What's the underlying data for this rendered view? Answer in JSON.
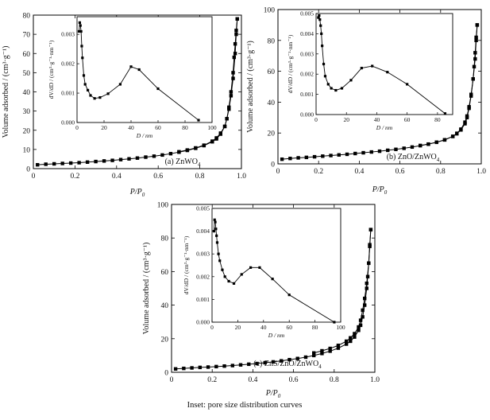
{
  "caption": "Inset: pore size distribution curves",
  "chart_data": [
    {
      "type": "line",
      "panel_label": "(a) ZnWO",
      "panel_label_sub": "4",
      "xlabel": "P/P",
      "xlabel_sub": "0",
      "ylabel": "Volume adsorbed / (cm³·g⁻¹)",
      "xlim": [
        0,
        1.0
      ],
      "ylim": [
        0,
        80
      ],
      "xticks": [
        "0",
        "0.2",
        "0.4",
        "0.6",
        "0.8",
        "1.0"
      ],
      "yticks": [
        "0",
        "10",
        "20",
        "30",
        "40",
        "50",
        "60",
        "70",
        "80"
      ],
      "series": [
        {
          "x": [
            0.02,
            0.06,
            0.1,
            0.14,
            0.18,
            0.22,
            0.26,
            0.3,
            0.34,
            0.38,
            0.42,
            0.46,
            0.5,
            0.54,
            0.58,
            0.62,
            0.66,
            0.7,
            0.74,
            0.78,
            0.82,
            0.86,
            0.88,
            0.9,
            0.92,
            0.93,
            0.94,
            0.95,
            0.96,
            0.965,
            0.97,
            0.975,
            0.98
          ],
          "y": [
            2.0,
            2.3,
            2.5,
            2.7,
            2.9,
            3.1,
            3.4,
            3.7,
            4.0,
            4.3,
            4.7,
            5.1,
            5.5,
            6.0,
            6.5,
            7.1,
            7.8,
            8.6,
            9.5,
            10.6,
            12.0,
            14.0,
            15.5,
            18,
            22,
            26,
            32,
            40,
            50,
            58,
            65,
            72,
            78
          ]
        },
        {
          "x": [
            0.98,
            0.975,
            0.97,
            0.96,
            0.95,
            0.94,
            0.93,
            0.92,
            0.9,
            0.88,
            0.86,
            0.82,
            0.78,
            0.74,
            0.7
          ],
          "y": [
            78,
            70,
            60,
            47,
            38,
            31,
            26,
            22,
            18.5,
            16,
            14.3,
            12.2,
            10.8,
            9.7,
            8.8
          ]
        }
      ],
      "inset": {
        "xlabel": "D / nm",
        "ylabel": "dV/dD / (cm³·g⁻¹·nm⁻¹)",
        "xlim": [
          0,
          100
        ],
        "ylim": [
          0,
          0.0036
        ],
        "xticks": [
          "0",
          "20",
          "40",
          "60",
          "80",
          "100"
        ],
        "yticks": [
          "0.000",
          "0.001",
          "0.002",
          "0.003"
        ],
        "x": [
          1.5,
          2,
          2.5,
          3,
          3.5,
          4,
          5,
          6,
          8,
          10,
          13,
          17,
          23,
          32,
          40,
          46,
          60,
          90
        ],
        "y": [
          0.0031,
          0.0034,
          0.0033,
          0.0031,
          0.0026,
          0.0022,
          0.0016,
          0.0013,
          0.0011,
          0.00092,
          0.00082,
          0.00085,
          0.00098,
          0.0013,
          0.0019,
          0.0018,
          0.00115,
          8e-05
        ]
      }
    },
    {
      "type": "line",
      "panel_label": "(b) ZnO/ZnWO",
      "panel_label_sub": "4",
      "xlabel": "P/P",
      "xlabel_sub": "0",
      "ylabel": "Volume adsorbed / (cm³·g⁻¹)",
      "xlim": [
        0,
        1.0
      ],
      "ylim": [
        0,
        100
      ],
      "xticks": [
        "0",
        "0.2",
        "0.4",
        "0.6",
        "0.8",
        "1.0"
      ],
      "yticks": [
        "0",
        "20",
        "40",
        "60",
        "80",
        "100"
      ],
      "series": [
        {
          "x": [
            0.02,
            0.06,
            0.1,
            0.14,
            0.18,
            0.22,
            0.26,
            0.3,
            0.34,
            0.38,
            0.42,
            0.46,
            0.5,
            0.54,
            0.58,
            0.62,
            0.66,
            0.7,
            0.74,
            0.78,
            0.82,
            0.86,
            0.88,
            0.9,
            0.92,
            0.93,
            0.94,
            0.95,
            0.96,
            0.965,
            0.97,
            0.975,
            0.98
          ],
          "y": [
            3.0,
            3.5,
            3.9,
            4.2,
            4.6,
            5.0,
            5.4,
            5.8,
            6.2,
            6.7,
            7.2,
            7.7,
            8.2,
            8.8,
            9.4,
            10.1,
            10.9,
            11.8,
            12.8,
            14.0,
            15.6,
            17.8,
            19.5,
            22,
            26,
            30,
            36,
            44,
            55,
            63,
            72,
            82,
            90
          ]
        },
        {
          "x": [
            0.98,
            0.975,
            0.97,
            0.96,
            0.95,
            0.94,
            0.93,
            0.92,
            0.9,
            0.88,
            0.86,
            0.82,
            0.78,
            0.74,
            0.7
          ],
          "y": [
            90,
            80,
            68,
            55,
            45,
            37,
            31,
            27,
            22.5,
            19.8,
            17.8,
            15.5,
            14.0,
            12.8,
            11.9
          ]
        }
      ],
      "inset": {
        "xlabel": "D / nm",
        "ylabel": "dV/dD / (cm³·g⁻¹·nm⁻¹)",
        "xlim": [
          0,
          90
        ],
        "ylim": [
          0,
          0.005
        ],
        "xticks": [
          "0",
          "20",
          "40",
          "60",
          "80"
        ],
        "yticks": [
          "0.000",
          "0.001",
          "0.002",
          "0.003",
          "0.004",
          "0.005"
        ],
        "x": [
          1.5,
          2,
          2.5,
          3,
          3.5,
          4,
          5,
          6,
          8,
          10,
          13,
          17,
          23,
          30,
          37,
          47,
          60,
          85
        ],
        "y": [
          0.0048,
          0.0049,
          0.0047,
          0.0044,
          0.004,
          0.0034,
          0.0025,
          0.0019,
          0.0015,
          0.0013,
          0.0012,
          0.0013,
          0.0017,
          0.0023,
          0.0024,
          0.0021,
          0.0015,
          5e-05
        ]
      }
    },
    {
      "type": "line",
      "panel_label": "(c) ZnS/ZnO/ZnWO",
      "panel_label_sub": "4",
      "xlabel": "P/P",
      "xlabel_sub": "0",
      "ylabel": "Volume adsorbed / (cm³·g⁻¹)",
      "xlim": [
        0,
        1.0
      ],
      "ylim": [
        0,
        100
      ],
      "xticks": [
        "0",
        "0.2",
        "0.4",
        "0.6",
        "0.8",
        "1.0"
      ],
      "yticks": [
        "0",
        "20",
        "40",
        "60",
        "80",
        "100"
      ],
      "series": [
        {
          "x": [
            0.02,
            0.06,
            0.1,
            0.14,
            0.18,
            0.22,
            0.26,
            0.3,
            0.34,
            0.38,
            0.42,
            0.46,
            0.5,
            0.54,
            0.58,
            0.62,
            0.66,
            0.7,
            0.74,
            0.78,
            0.82,
            0.86,
            0.88,
            0.9,
            0.92,
            0.93,
            0.94,
            0.95,
            0.96,
            0.965,
            0.97,
            0.975,
            0.98
          ],
          "y": [
            2.0,
            2.3,
            2.6,
            2.9,
            3.1,
            3.4,
            3.7,
            4.0,
            4.4,
            4.8,
            5.2,
            5.7,
            6.2,
            6.8,
            7.5,
            8.2,
            9.0,
            10.0,
            11.2,
            12.6,
            14.4,
            16.8,
            18.5,
            21,
            25,
            28,
            33,
            40,
            50,
            57,
            65,
            75,
            85
          ]
        },
        {
          "x": [
            0.98,
            0.975,
            0.97,
            0.96,
            0.95,
            0.94,
            0.93,
            0.92,
            0.9,
            0.88,
            0.86,
            0.82,
            0.78,
            0.74,
            0.7
          ],
          "y": [
            85,
            76,
            65,
            53,
            44,
            37,
            31,
            27,
            23,
            20.5,
            18.5,
            16.0,
            14.2,
            12.8,
            11.5
          ]
        }
      ],
      "inset": {
        "xlabel": "D / nm",
        "ylabel": "dV/dD / (cm³·g⁻¹·nm⁻¹)",
        "xlim": [
          0,
          100
        ],
        "ylim": [
          0,
          0.005
        ],
        "xticks": [
          "0",
          "20",
          "40",
          "60",
          "80",
          "100"
        ],
        "yticks": [
          "0.000",
          "0.001",
          "0.002",
          "0.003",
          "0.004",
          "0.005"
        ],
        "x": [
          1.5,
          2,
          2.5,
          3,
          3.5,
          4,
          5,
          6,
          8,
          10,
          13,
          17,
          23,
          30,
          37,
          47,
          60,
          95
        ],
        "y": [
          0.004,
          0.0045,
          0.0044,
          0.0041,
          0.0038,
          0.0035,
          0.003,
          0.0027,
          0.0023,
          0.002,
          0.0018,
          0.0017,
          0.0021,
          0.0024,
          0.0024,
          0.0019,
          0.0012,
          0.0
        ]
      }
    }
  ]
}
